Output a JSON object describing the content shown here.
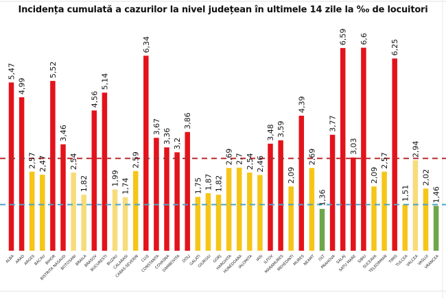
{
  "chart_data": {
    "type": "bar",
    "title": "Incidența cumulată a cazurilor la nivel județean în ultimele 14 zile la ‰ de locuitori",
    "xlabel": "",
    "ylabel": "",
    "ylim": [
      0,
      7
    ],
    "grid": false,
    "legend": "none",
    "categories": [
      "ALBA",
      "ARAD",
      "ARGES",
      "BACAU",
      "BIHOR",
      "BISTRITA NASAUD",
      "BOTOSANI",
      "BRAILA",
      "BRASOV",
      "BUCURESTI",
      "BUZAU",
      "CALARASI",
      "CARAS-SEVERIN",
      "CLUJ",
      "CONSTANTA",
      "COVASNA",
      "DAMBOVITA",
      "DOLJ",
      "GALATI",
      "GIURGIU",
      "GORJ",
      "HARGHITA",
      "HUNEDOARA",
      "IALOMITA",
      "IASI",
      "ILFOV",
      "MARAMURES",
      "MEHEDINTI",
      "MURES",
      "NEAMT",
      "OLT",
      "PRAHOVA",
      "SALAJ",
      "SATU MARE",
      "SIBIU",
      "SUCEAVA",
      "TELEORMAN",
      "TIMIS",
      "TULCEA",
      "VALCEA",
      "VASLUI",
      "VRANCEA"
    ],
    "values": [
      5.47,
      4.99,
      2.57,
      2.47,
      5.52,
      3.46,
      2.54,
      1.82,
      4.56,
      5.14,
      1.99,
      1.74,
      2.59,
      6.34,
      3.67,
      3.36,
      3.2,
      3.86,
      1.75,
      1.87,
      1.82,
      2.69,
      2.7,
      2.54,
      2.46,
      3.48,
      3.59,
      2.09,
      4.39,
      2.69,
      1.36,
      3.77,
      6.59,
      3.03,
      6.6,
      2.09,
      2.57,
      6.25,
      1.51,
      2.94,
      2.02,
      1.46
    ],
    "labels": [
      "5,47",
      "4,99",
      "2,57",
      "2,47",
      "5,52",
      "3,46",
      "2,54",
      "1,82",
      "4,56",
      "5,14",
      "1,99",
      "1,74",
      "2,59",
      "6,34",
      "3,67",
      "3,36",
      "3,2",
      "3,86",
      "1,75",
      "1,87",
      "1,82",
      "2,69",
      "2,7",
      "2,54",
      "2,46",
      "3,48",
      "3,59",
      "2,09",
      "4,39",
      "2,69",
      "1,36",
      "3,77",
      "6,59",
      "3,03",
      "6,6",
      "2,09",
      "2,57",
      "6,25",
      "1,51",
      "2,94",
      "2,02",
      "1,46"
    ],
    "colors": [
      "red",
      "red",
      "yellow",
      "yellow",
      "red",
      "red",
      "lightyellow",
      "lightyellow",
      "red",
      "red",
      "lightyellow",
      "lightyellow",
      "yellow",
      "red",
      "red",
      "red",
      "red",
      "red",
      "yellow",
      "yellow",
      "yellow",
      "yellow",
      "yellow",
      "yellow",
      "yellow",
      "red",
      "red",
      "yellow",
      "red",
      "yellow",
      "green",
      "red",
      "red",
      "red",
      "red",
      "yellow",
      "yellow",
      "red",
      "yellow",
      "lightyellow",
      "yellow",
      "green"
    ],
    "palette": {
      "red": "#e3131b",
      "yellow": "#f5c518",
      "lightyellow": "#f7dc7a",
      "green": "#6ea64a"
    },
    "reference_lines": [
      {
        "name": "threshold-3",
        "value": 3,
        "color": "#b8282d",
        "style": "dashed"
      },
      {
        "name": "threshold-1.5",
        "value": 1.5,
        "color": "#4aa3c8",
        "style": "dashed"
      }
    ]
  }
}
